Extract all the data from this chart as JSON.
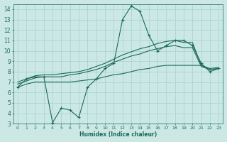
{
  "bg_color": "#cce8e5",
  "grid_color": "#aad4d0",
  "line_color": "#1a6b5a",
  "xlabel": "Humidex (Indice chaleur)",
  "xlim": [
    -0.5,
    23.5
  ],
  "ylim": [
    3,
    14.5
  ],
  "yticks": [
    3,
    4,
    5,
    6,
    7,
    8,
    9,
    10,
    11,
    12,
    13,
    14
  ],
  "xticks": [
    0,
    1,
    2,
    3,
    4,
    5,
    6,
    7,
    8,
    9,
    10,
    11,
    12,
    13,
    14,
    15,
    16,
    17,
    18,
    19,
    20,
    21,
    22,
    23
  ],
  "series": [
    {
      "x": [
        0,
        1,
        2,
        3,
        4,
        5,
        6,
        7,
        8,
        9,
        10,
        11,
        12,
        13,
        14,
        15,
        16,
        17,
        18,
        19,
        20,
        21,
        22,
        23
      ],
      "y": [
        6.5,
        7.3,
        7.5,
        7.5,
        3.1,
        4.5,
        4.3,
        3.6,
        6.5,
        7.3,
        8.3,
        8.8,
        13.0,
        14.3,
        13.8,
        11.5,
        10.0,
        10.5,
        11.0,
        11.0,
        10.5,
        8.8,
        8.0,
        8.3
      ],
      "marker": "+"
    },
    {
      "x": [
        0,
        1,
        2,
        3,
        4,
        5,
        6,
        7,
        8,
        9,
        10,
        11,
        12,
        13,
        14,
        15,
        16,
        17,
        18,
        19,
        20,
        21,
        22,
        23
      ],
      "y": [
        6.5,
        6.8,
        7.0,
        7.0,
        7.0,
        7.0,
        7.0,
        7.1,
        7.2,
        7.3,
        7.5,
        7.7,
        7.8,
        8.0,
        8.2,
        8.3,
        8.5,
        8.6,
        8.6,
        8.6,
        8.6,
        8.6,
        8.2,
        8.3
      ],
      "marker": null
    },
    {
      "x": [
        0,
        1,
        2,
        3,
        4,
        5,
        6,
        7,
        8,
        9,
        10,
        11,
        12,
        13,
        14,
        15,
        16,
        17,
        18,
        19,
        20,
        21,
        22,
        23
      ],
      "y": [
        6.8,
        7.1,
        7.4,
        7.5,
        7.5,
        7.5,
        7.7,
        7.8,
        8.0,
        8.2,
        8.5,
        8.9,
        9.2,
        9.5,
        9.7,
        10.0,
        10.2,
        10.4,
        10.5,
        10.3,
        10.3,
        8.5,
        8.2,
        8.3
      ],
      "marker": null
    },
    {
      "x": [
        0,
        1,
        2,
        3,
        4,
        5,
        6,
        7,
        8,
        9,
        10,
        11,
        12,
        13,
        14,
        15,
        16,
        17,
        18,
        19,
        20,
        21,
        22,
        23
      ],
      "y": [
        7.0,
        7.3,
        7.6,
        7.7,
        7.7,
        7.8,
        7.9,
        8.0,
        8.2,
        8.5,
        8.8,
        9.2,
        9.6,
        9.9,
        10.2,
        10.4,
        10.7,
        10.9,
        11.0,
        10.8,
        10.8,
        8.6,
        8.3,
        8.4
      ],
      "marker": null
    }
  ]
}
